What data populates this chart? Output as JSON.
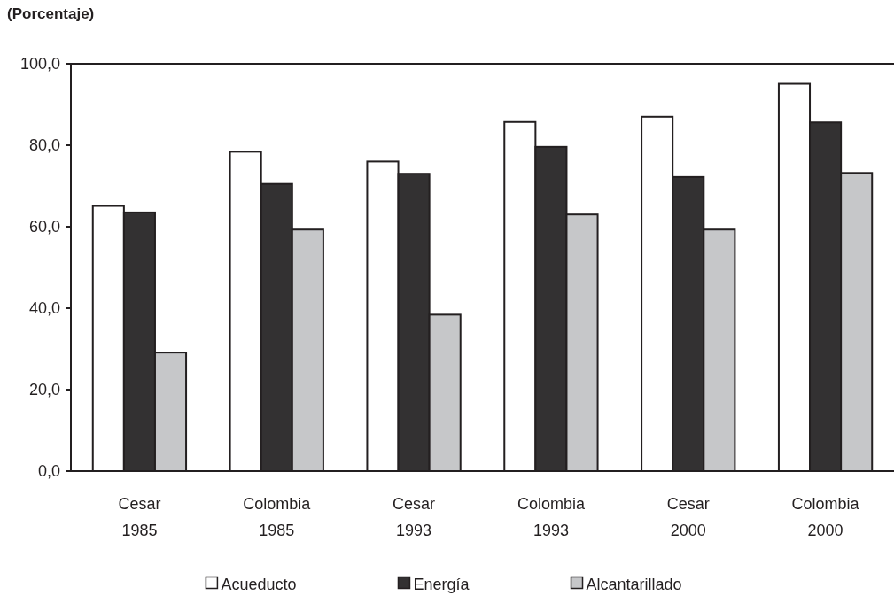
{
  "chart_data": {
    "type": "bar",
    "ylabel": "(Porcentaje)",
    "categories": [
      "Cesar\n1985",
      "Colombia\n1985",
      "Cesar\n1993",
      "Colombia\n1993",
      "Cesar\n2000",
      "Colombia\n2000"
    ],
    "series": [
      {
        "name": "Acueducto",
        "color": "#ffffff",
        "values": [
          65.1,
          78.4,
          76.0,
          85.7,
          87.0,
          95.1
        ]
      },
      {
        "name": "Energía",
        "color": "#333132",
        "values": [
          63.5,
          70.5,
          73.0,
          79.6,
          72.2,
          85.6
        ]
      },
      {
        "name": "Alcantarillado",
        "color": "#c6c7c9",
        "values": [
          29.1,
          59.3,
          38.4,
          63.0,
          59.3,
          73.2
        ]
      }
    ],
    "ylim": [
      0,
      100
    ],
    "yticks": [
      {
        "value": 0,
        "label": "0,0"
      },
      {
        "value": 20,
        "label": "20,0"
      },
      {
        "value": 40,
        "label": "40,0"
      },
      {
        "value": 60,
        "label": "60,0"
      },
      {
        "value": 80,
        "label": "80,0"
      },
      {
        "value": 100,
        "label": "100,0"
      }
    ],
    "grid": false,
    "legend": "bottom"
  }
}
